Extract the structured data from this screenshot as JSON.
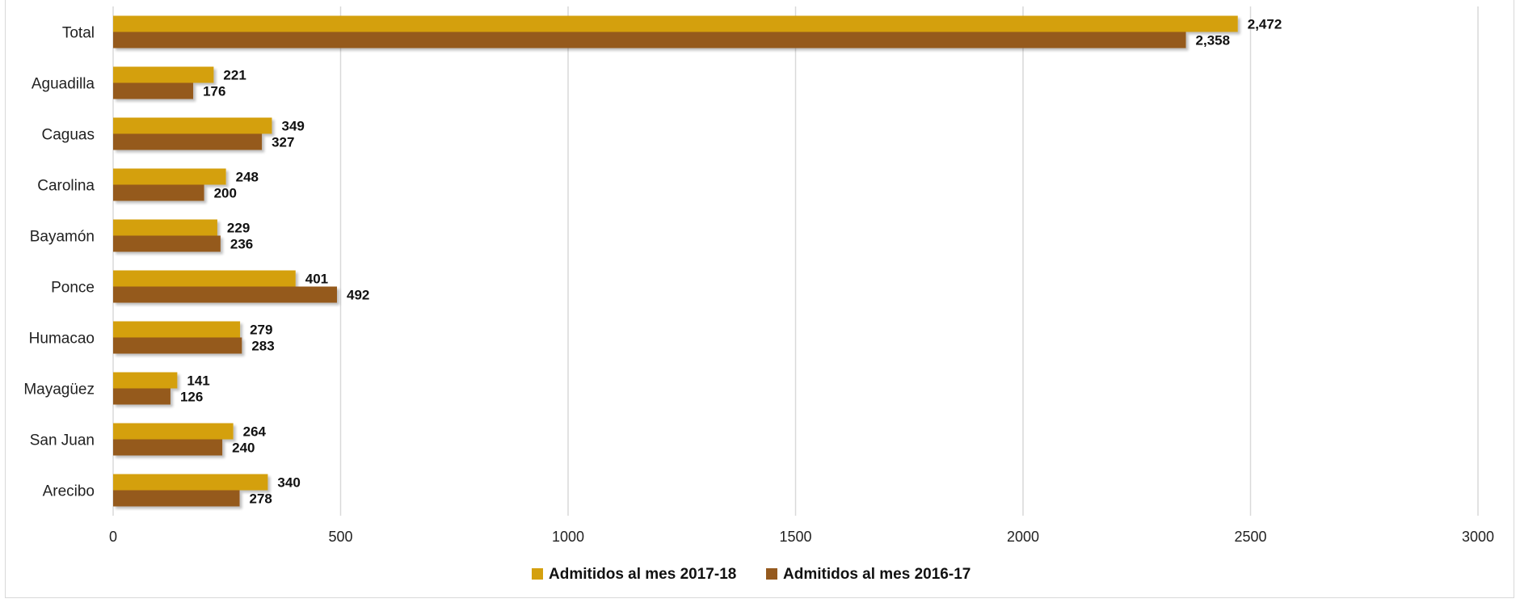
{
  "chart_data": {
    "type": "bar",
    "orientation": "horizontal",
    "categories": [
      "Total",
      "Aguadilla",
      "Caguas",
      "Carolina",
      "Bayamón",
      "Ponce",
      "Humacao",
      "Mayagüez",
      "San Juan",
      "Arecibo"
    ],
    "series": [
      {
        "name": "Admitidos al mes 2017-18",
        "color": "#D4A00E",
        "values": [
          2472,
          221,
          349,
          248,
          229,
          401,
          279,
          141,
          264,
          340
        ],
        "labels": [
          "2,472",
          "221",
          "349",
          "248",
          "229",
          "401",
          "279",
          "141",
          "264",
          "340"
        ]
      },
      {
        "name": "Admitidos al mes 2016-17",
        "color": "#955A1F",
        "values": [
          2358,
          176,
          327,
          200,
          236,
          492,
          283,
          126,
          240,
          278
        ],
        "labels": [
          "2,358",
          "176",
          "327",
          "200",
          "236",
          "492",
          "283",
          "126",
          "240",
          "278"
        ]
      }
    ],
    "xlim": [
      0,
      3000
    ],
    "xticks": [
      "0",
      "500",
      "1000",
      "1500",
      "2000",
      "2500",
      "3000"
    ],
    "xtick_values": [
      0,
      500,
      1000,
      1500,
      2000,
      2500,
      3000
    ],
    "grid": true,
    "legend": "bottom"
  }
}
